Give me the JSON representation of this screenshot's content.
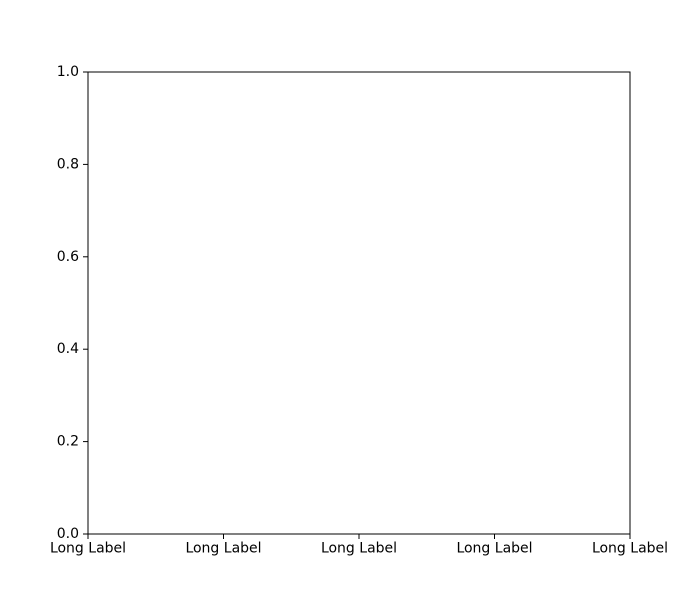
{
  "chart_data": {
    "type": "line",
    "title": "",
    "xlabel": "",
    "ylabel": "",
    "x_tick_labels": [
      "Long Label",
      "Long Label",
      "Long Label",
      "Long Label",
      "Long Label"
    ],
    "y_tick_labels": [
      "0.0",
      "0.2",
      "0.4",
      "0.6",
      "0.8",
      "1.0"
    ],
    "ylim": [
      0,
      1
    ],
    "series": [],
    "grid": false,
    "legend": "none"
  }
}
